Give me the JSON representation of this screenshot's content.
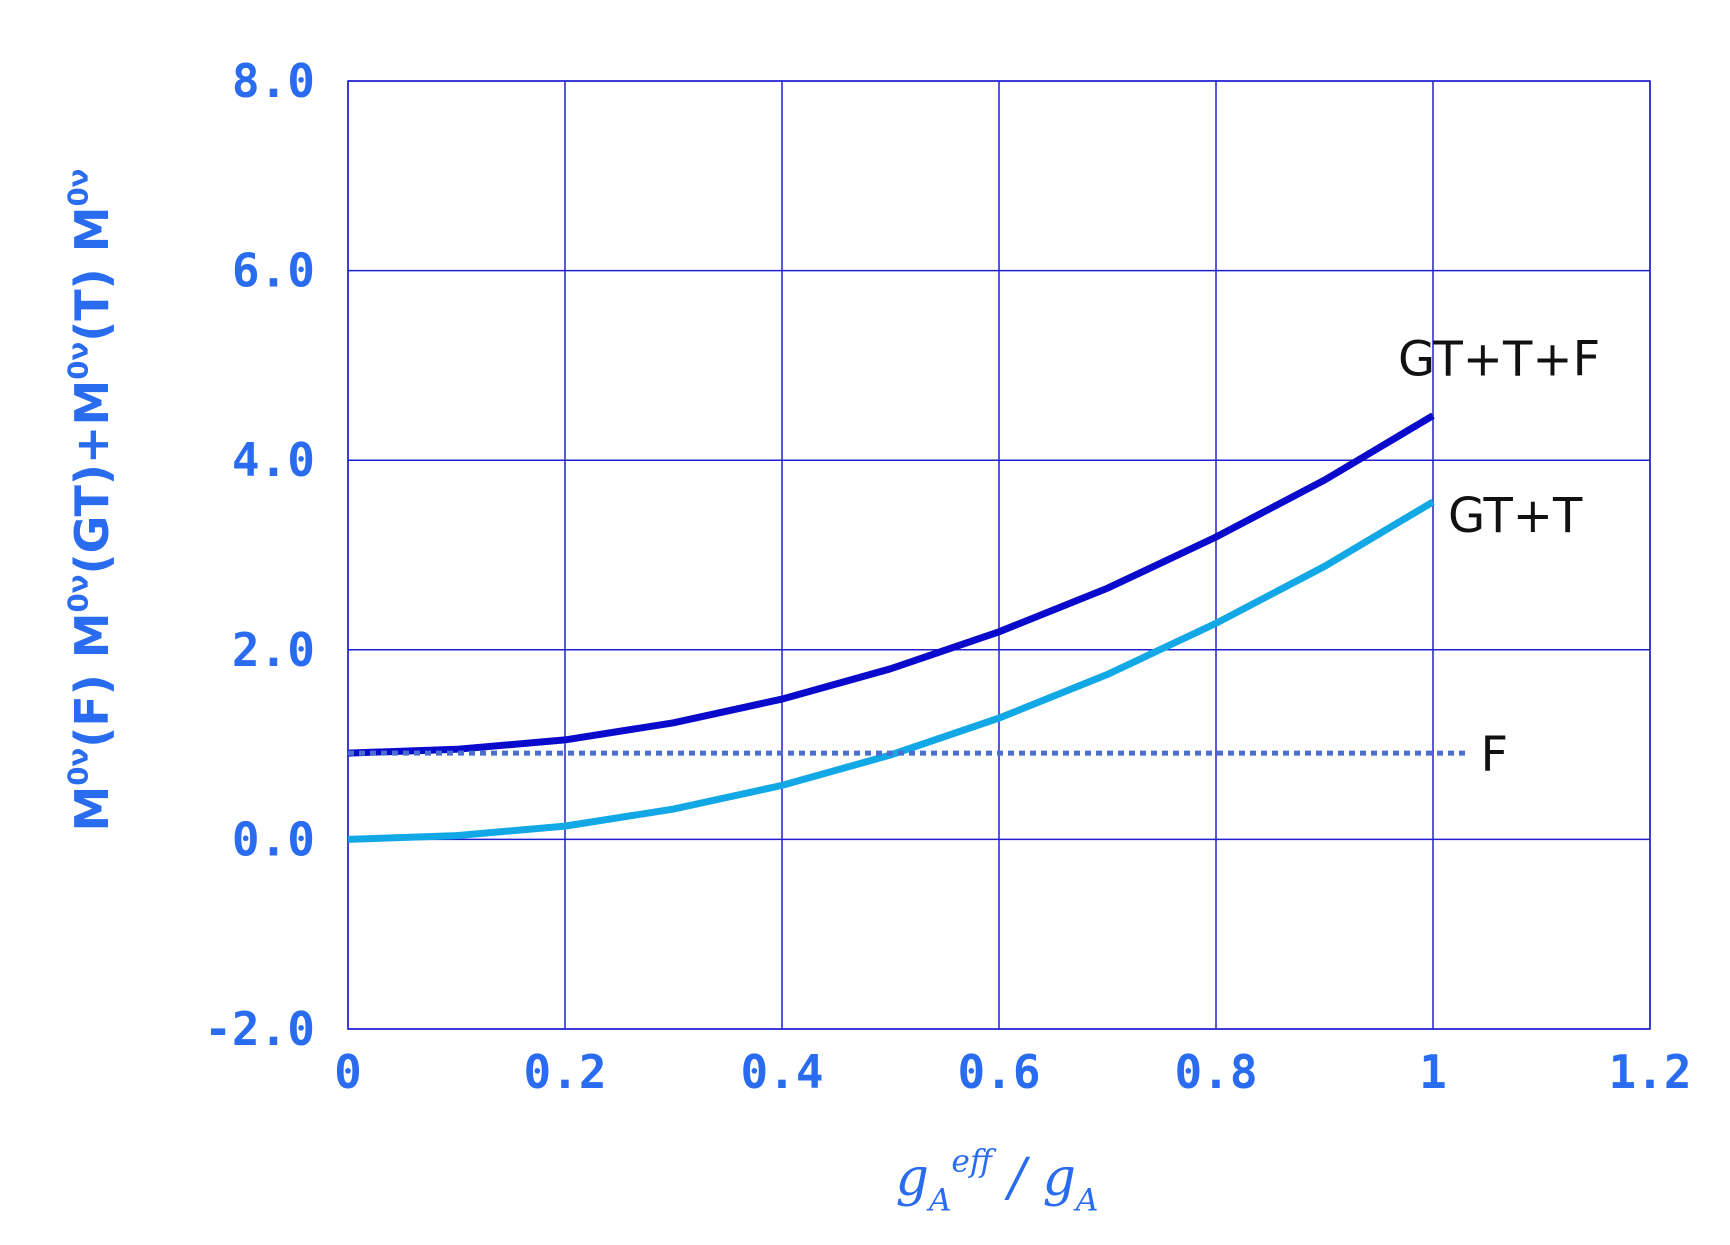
{
  "chart_data": {
    "type": "line",
    "x_label_parts": [
      {
        "text": "g",
        "pos": "base"
      },
      {
        "text": "A",
        "pos": "sub"
      },
      {
        "text": "eff",
        "pos": "sup"
      },
      {
        "text": " / g",
        "pos": "base"
      },
      {
        "text": "A",
        "pos": "sub"
      }
    ],
    "y_label_parts": [
      {
        "text": "M",
        "pos": "base"
      },
      {
        "text": "0ν",
        "pos": "sup"
      },
      {
        "text": "(F)   M",
        "pos": "base"
      },
      {
        "text": "0ν",
        "pos": "sup"
      },
      {
        "text": "(GT)+M",
        "pos": "base"
      },
      {
        "text": "0ν",
        "pos": "sup"
      },
      {
        "text": "(T)   M",
        "pos": "base"
      },
      {
        "text": "0ν",
        "pos": "sup"
      }
    ],
    "xlim": [
      0,
      1.2
    ],
    "xticks": [
      0,
      0.2,
      0.4,
      0.6,
      0.8,
      1,
      1.2
    ],
    "ylim": [
      -2,
      8
    ],
    "yticks": [
      {
        "value": -2,
        "label": "-2.0"
      },
      {
        "value": 0,
        "label": "0.0"
      },
      {
        "value": 2,
        "label": "2.0"
      },
      {
        "value": 4,
        "label": "4.0"
      },
      {
        "value": 6,
        "label": "6.0"
      },
      {
        "value": 8,
        "label": "8.0"
      }
    ],
    "grid": true,
    "series": [
      {
        "name": "GT+T+F",
        "color": "#0a0acd",
        "dash": "solid",
        "x": [
          0,
          0.1,
          0.2,
          0.3,
          0.4,
          0.5,
          0.6,
          0.7,
          0.8,
          0.9,
          1
        ],
        "values": [
          0.91,
          0.95,
          1.05,
          1.23,
          1.48,
          1.8,
          2.19,
          2.65,
          3.19,
          3.79,
          4.47
        ]
      },
      {
        "name": "GT+T",
        "color": "#12a8e6",
        "dash": "solid",
        "x": [
          0,
          0.1,
          0.2,
          0.3,
          0.4,
          0.5,
          0.6,
          0.7,
          0.8,
          0.9,
          1
        ],
        "values": [
          0,
          0.04,
          0.14,
          0.32,
          0.57,
          0.89,
          1.28,
          1.74,
          2.28,
          2.88,
          3.56
        ]
      },
      {
        "name": "F",
        "color": "#4a6fcf",
        "dash": "dotted",
        "x": [
          0,
          1.03
        ],
        "values": [
          0.91,
          0.91
        ]
      }
    ]
  }
}
